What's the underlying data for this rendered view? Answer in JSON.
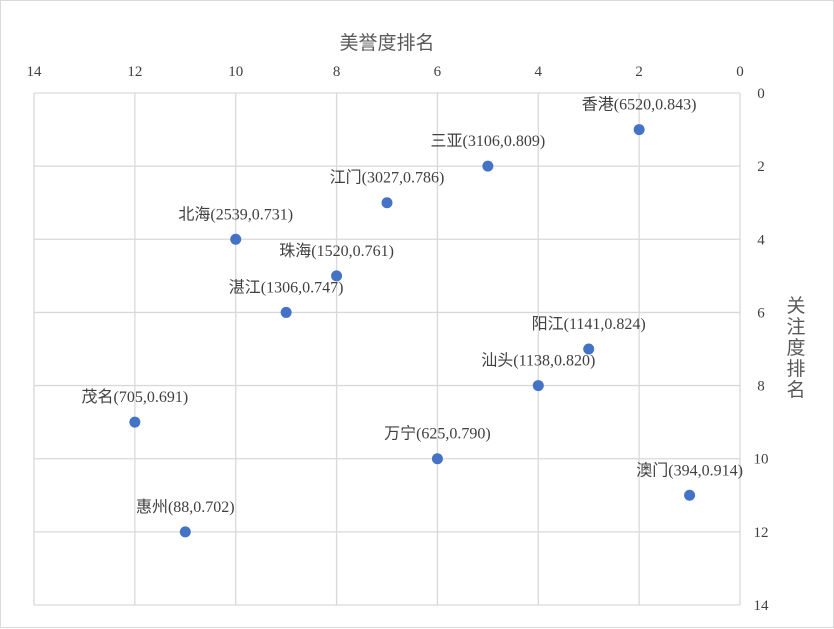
{
  "chart_data": {
    "type": "scatter",
    "xlabel": "美誉度排名",
    "ylabel": "关注度排名",
    "x_axis": {
      "min": 0,
      "max": 14,
      "step": 2,
      "reversed": true,
      "position": "top"
    },
    "y_axis": {
      "min": 0,
      "max": 14,
      "step": 2,
      "reversed": true,
      "position": "right"
    },
    "grid": true,
    "marker_color": "#4472c4",
    "points": [
      {
        "x": 2,
        "y": 1,
        "label": "香港(6520,0.843)"
      },
      {
        "x": 5,
        "y": 2,
        "label": "三亚(3106,0.809)"
      },
      {
        "x": 7,
        "y": 3,
        "label": "江门(3027,0.786)"
      },
      {
        "x": 10,
        "y": 4,
        "label": "北海(2539,0.731)"
      },
      {
        "x": 8,
        "y": 5,
        "label": "珠海(1520,0.761)"
      },
      {
        "x": 9,
        "y": 6,
        "label": "湛江(1306,0.747)"
      },
      {
        "x": 3,
        "y": 7,
        "label": "阳江(1141,0.824)"
      },
      {
        "x": 4,
        "y": 8,
        "label": "汕头(1138,0.820)"
      },
      {
        "x": 12,
        "y": 9,
        "label": "茂名(705,0.691)"
      },
      {
        "x": 6,
        "y": 10,
        "label": "万宁(625,0.790)"
      },
      {
        "x": 1,
        "y": 11,
        "label": "澳门(394,0.914)"
      },
      {
        "x": 11,
        "y": 12,
        "label": "惠州(88,0.702)"
      }
    ]
  }
}
